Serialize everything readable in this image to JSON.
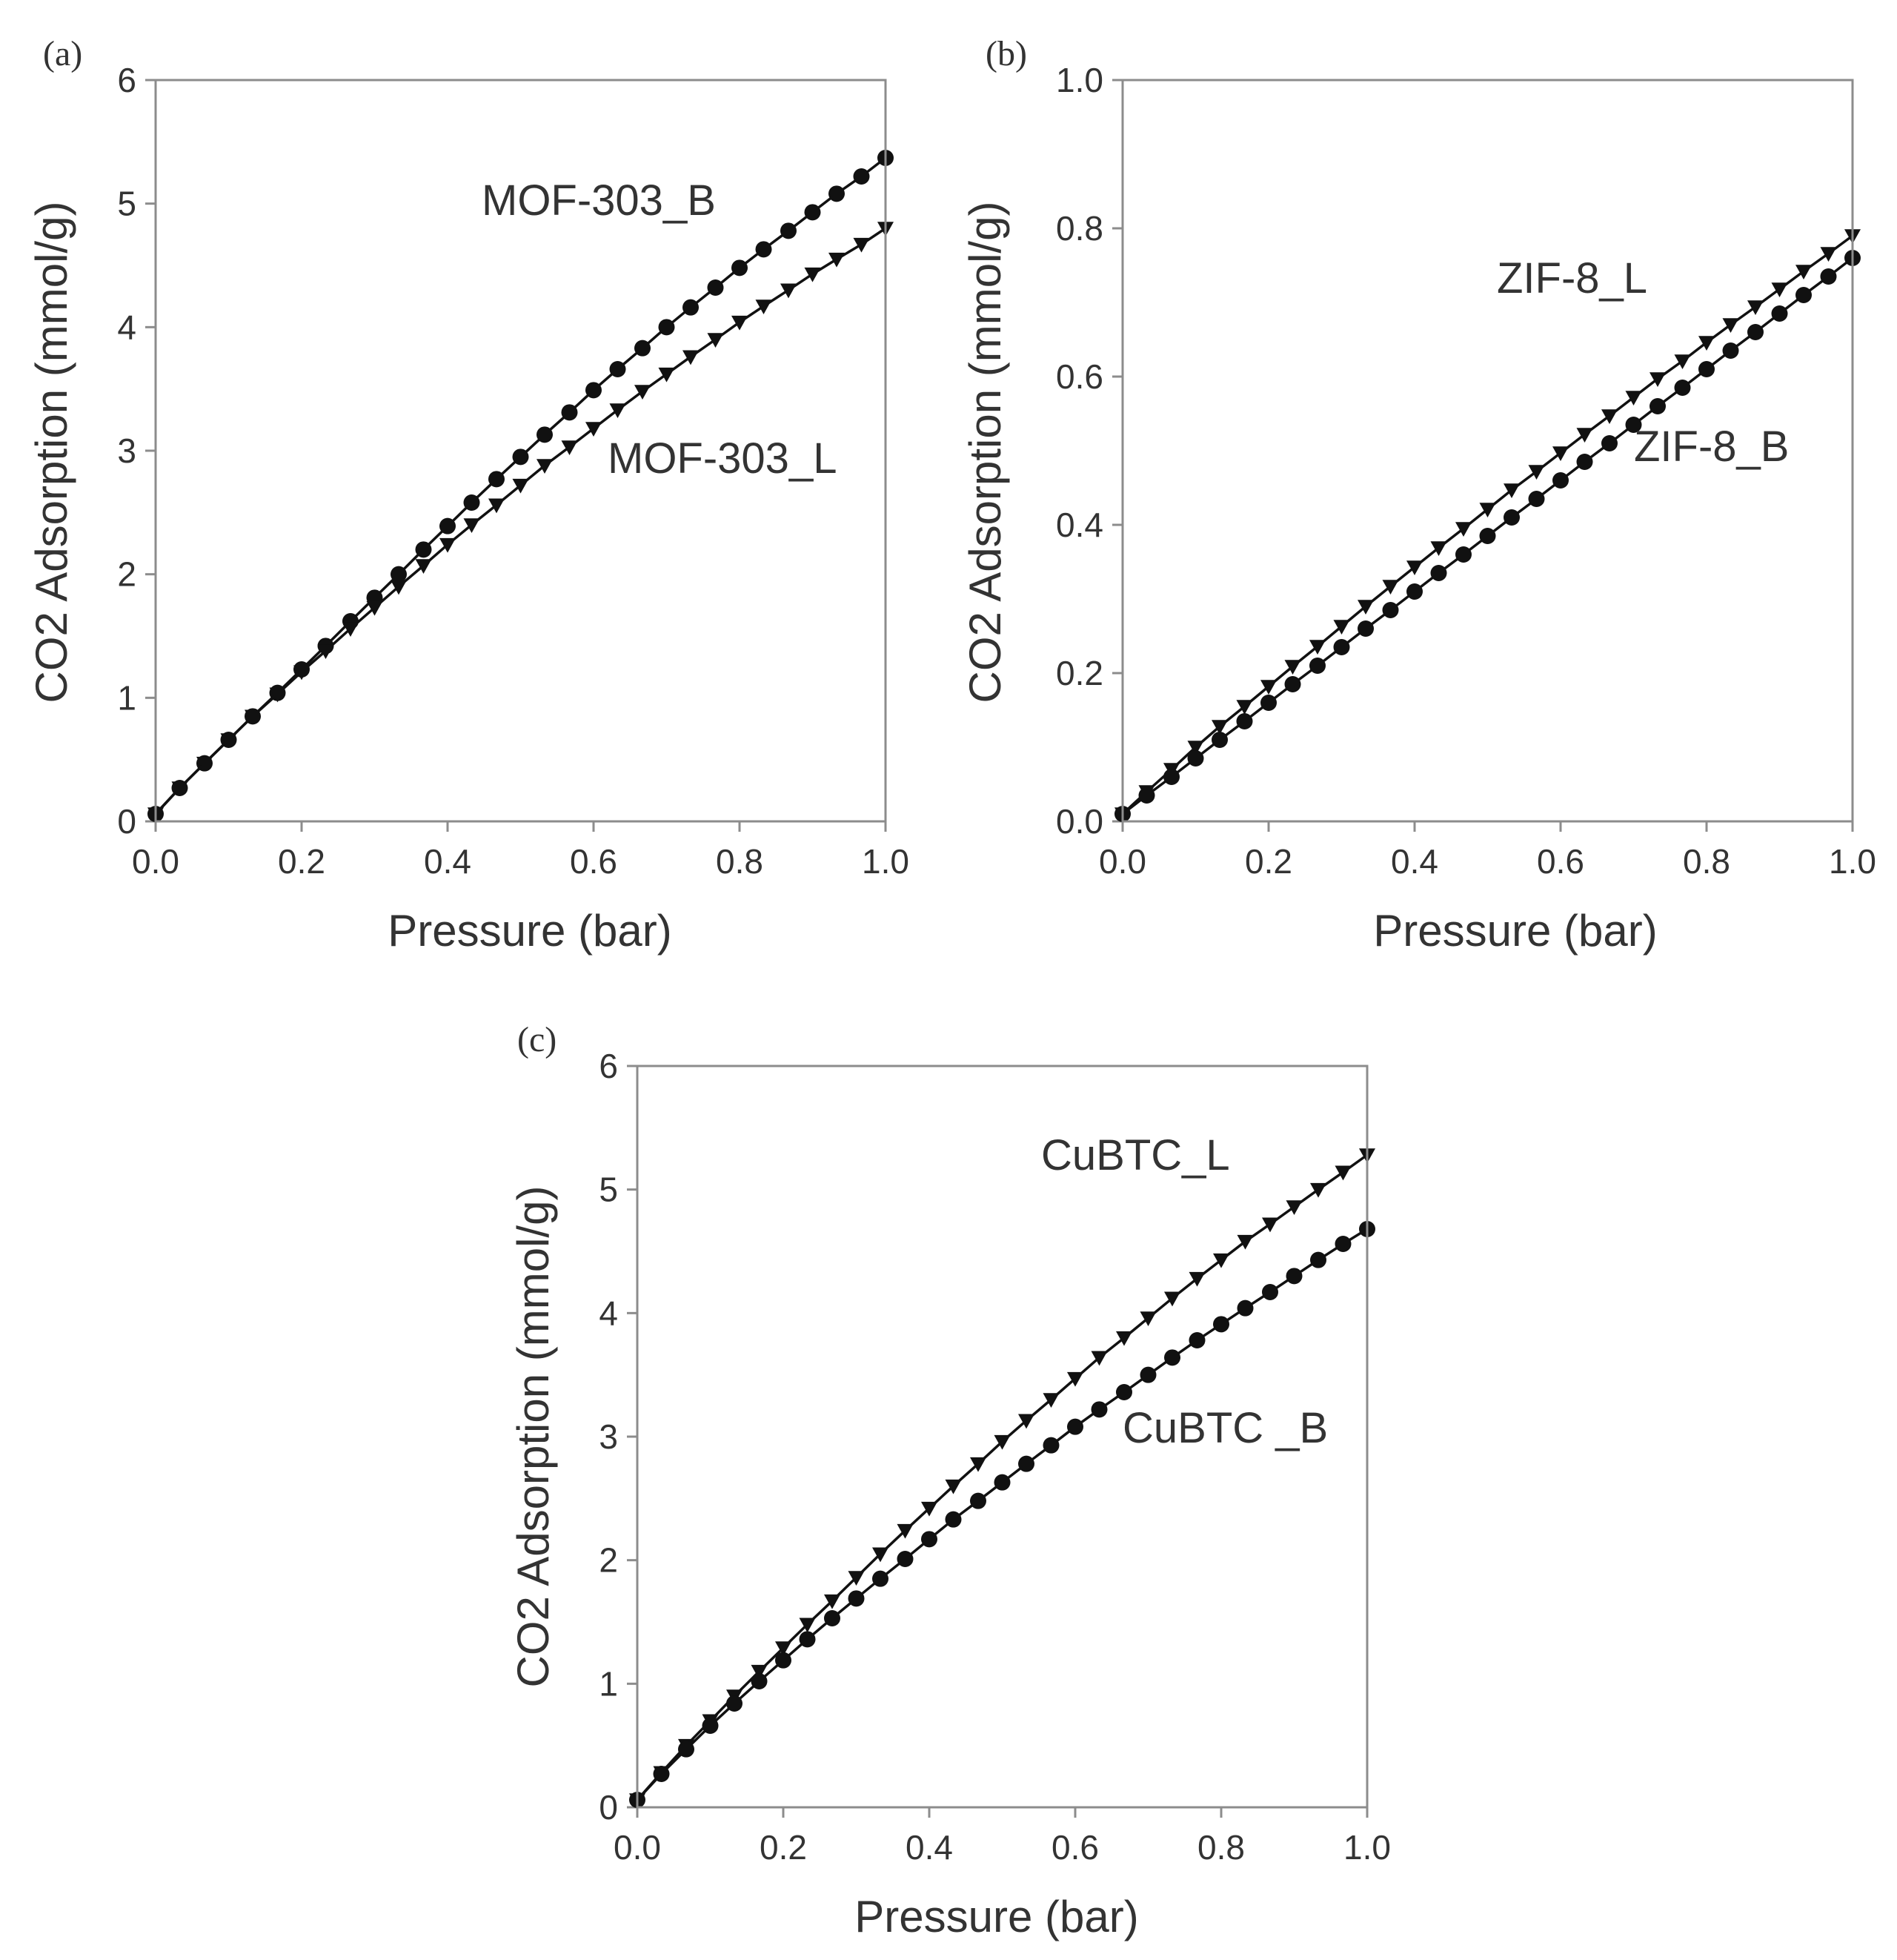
{
  "chart_data": [
    {
      "type": "line",
      "panel_label": "(a)",
      "xlabel": "Pressure (bar)",
      "ylabel": "CO2 Adsorption (mmol/g)",
      "xlim": [
        0,
        1.0
      ],
      "ylim": [
        0,
        6
      ],
      "x_ticks": [
        "0.0",
        "0.2",
        "0.4",
        "0.6",
        "0.8",
        "1.0"
      ],
      "y_ticks": [
        "0",
        "1",
        "2",
        "3",
        "4",
        "5",
        "6"
      ],
      "grid": false,
      "series": [
        {
          "name": "MOF-303_B",
          "marker": "circle",
          "x": [
            0.0,
            0.033,
            0.067,
            0.1,
            0.133,
            0.167,
            0.2,
            0.233,
            0.267,
            0.3,
            0.333,
            0.367,
            0.4,
            0.433,
            0.467,
            0.5,
            0.533,
            0.567,
            0.6,
            0.633,
            0.667,
            0.7,
            0.733,
            0.767,
            0.8,
            0.833,
            0.867,
            0.9,
            0.933,
            0.967,
            1.0
          ],
          "y": [
            0.06,
            0.27,
            0.47,
            0.66,
            0.85,
            1.04,
            1.23,
            1.42,
            1.62,
            1.81,
            2.0,
            2.2,
            2.39,
            2.58,
            2.77,
            2.95,
            3.13,
            3.31,
            3.49,
            3.66,
            3.83,
            4.0,
            4.16,
            4.32,
            4.48,
            4.63,
            4.78,
            4.93,
            5.08,
            5.22,
            5.37
          ]
        },
        {
          "name": "MOF-303_L",
          "marker": "triangle-down",
          "x": [
            0.0,
            0.033,
            0.067,
            0.1,
            0.133,
            0.167,
            0.2,
            0.233,
            0.267,
            0.3,
            0.333,
            0.367,
            0.4,
            0.433,
            0.467,
            0.5,
            0.533,
            0.567,
            0.6,
            0.633,
            0.667,
            0.7,
            0.733,
            0.767,
            0.8,
            0.833,
            0.867,
            0.9,
            0.933,
            0.967,
            1.0
          ],
          "y": [
            0.06,
            0.27,
            0.47,
            0.66,
            0.85,
            1.03,
            1.21,
            1.38,
            1.56,
            1.73,
            1.9,
            2.07,
            2.24,
            2.4,
            2.56,
            2.72,
            2.88,
            3.03,
            3.18,
            3.33,
            3.48,
            3.62,
            3.76,
            3.9,
            4.04,
            4.17,
            4.3,
            4.43,
            4.55,
            4.67,
            4.8
          ]
        }
      ]
    },
    {
      "type": "line",
      "panel_label": "(b)",
      "xlabel": "Pressure (bar)",
      "ylabel": "CO2 Adsorption (mmol/g)",
      "xlim": [
        0,
        1.0
      ],
      "ylim": [
        0,
        1.0
      ],
      "x_ticks": [
        "0.0",
        "0.2",
        "0.4",
        "0.6",
        "0.8",
        "1.0"
      ],
      "y_ticks": [
        "0.0",
        "0.2",
        "0.4",
        "0.6",
        "0.8",
        "1.0"
      ],
      "grid": false,
      "series": [
        {
          "name": "ZIF-8_L",
          "marker": "triangle-down",
          "x": [
            0.0,
            0.033,
            0.067,
            0.1,
            0.133,
            0.167,
            0.2,
            0.233,
            0.267,
            0.3,
            0.333,
            0.367,
            0.4,
            0.433,
            0.467,
            0.5,
            0.533,
            0.567,
            0.6,
            0.633,
            0.667,
            0.7,
            0.733,
            0.767,
            0.8,
            0.833,
            0.867,
            0.9,
            0.933,
            0.967,
            1.0
          ],
          "y": [
            0.01,
            0.04,
            0.07,
            0.1,
            0.128,
            0.155,
            0.182,
            0.209,
            0.236,
            0.263,
            0.29,
            0.317,
            0.343,
            0.369,
            0.395,
            0.421,
            0.447,
            0.472,
            0.497,
            0.522,
            0.547,
            0.572,
            0.597,
            0.621,
            0.646,
            0.67,
            0.694,
            0.718,
            0.742,
            0.766,
            0.79
          ]
        },
        {
          "name": "ZIF-8_B",
          "marker": "circle",
          "x": [
            0.0,
            0.033,
            0.067,
            0.1,
            0.133,
            0.167,
            0.2,
            0.233,
            0.267,
            0.3,
            0.333,
            0.367,
            0.4,
            0.433,
            0.467,
            0.5,
            0.533,
            0.567,
            0.6,
            0.633,
            0.667,
            0.7,
            0.733,
            0.767,
            0.8,
            0.833,
            0.867,
            0.9,
            0.933,
            0.967,
            1.0
          ],
          "y": [
            0.01,
            0.035,
            0.06,
            0.085,
            0.11,
            0.135,
            0.16,
            0.185,
            0.21,
            0.235,
            0.26,
            0.285,
            0.31,
            0.335,
            0.36,
            0.385,
            0.41,
            0.435,
            0.46,
            0.485,
            0.51,
            0.535,
            0.56,
            0.585,
            0.61,
            0.635,
            0.66,
            0.685,
            0.71,
            0.735,
            0.76
          ]
        }
      ]
    },
    {
      "type": "line",
      "panel_label": "(c)",
      "xlabel": "Pressure (bar)",
      "ylabel": "CO2 Adsorption (mmol/g)",
      "xlim": [
        0,
        1.0
      ],
      "ylim": [
        0,
        6
      ],
      "x_ticks": [
        "0.0",
        "0.2",
        "0.4",
        "0.6",
        "0.8",
        "1.0"
      ],
      "y_ticks": [
        "0",
        "1",
        "2",
        "3",
        "4",
        "5",
        "6"
      ],
      "grid": false,
      "series": [
        {
          "name": "CuBTC_L",
          "marker": "triangle-down",
          "x": [
            0.0,
            0.033,
            0.067,
            0.1,
            0.133,
            0.167,
            0.2,
            0.233,
            0.267,
            0.3,
            0.333,
            0.367,
            0.4,
            0.433,
            0.467,
            0.5,
            0.533,
            0.567,
            0.6,
            0.633,
            0.667,
            0.7,
            0.733,
            0.767,
            0.8,
            0.833,
            0.867,
            0.9,
            0.933,
            0.967,
            1.0
          ],
          "y": [
            0.06,
            0.28,
            0.5,
            0.7,
            0.9,
            1.1,
            1.29,
            1.48,
            1.67,
            1.86,
            2.05,
            2.24,
            2.42,
            2.6,
            2.78,
            2.96,
            3.13,
            3.3,
            3.47,
            3.64,
            3.8,
            3.96,
            4.12,
            4.28,
            4.43,
            4.58,
            4.72,
            4.86,
            5.0,
            5.14,
            5.28
          ]
        },
        {
          "name": "CuBTC _B",
          "marker": "circle",
          "x": [
            0.0,
            0.033,
            0.067,
            0.1,
            0.133,
            0.167,
            0.2,
            0.233,
            0.267,
            0.3,
            0.333,
            0.367,
            0.4,
            0.433,
            0.467,
            0.5,
            0.533,
            0.567,
            0.6,
            0.633,
            0.667,
            0.7,
            0.733,
            0.767,
            0.8,
            0.833,
            0.867,
            0.9,
            0.933,
            0.967,
            1.0
          ],
          "y": [
            0.06,
            0.27,
            0.47,
            0.66,
            0.84,
            1.02,
            1.19,
            1.36,
            1.53,
            1.69,
            1.85,
            2.01,
            2.17,
            2.33,
            2.48,
            2.63,
            2.78,
            2.93,
            3.08,
            3.22,
            3.36,
            3.5,
            3.64,
            3.78,
            3.91,
            4.04,
            4.17,
            4.3,
            4.43,
            4.56,
            4.68
          ]
        }
      ]
    }
  ]
}
